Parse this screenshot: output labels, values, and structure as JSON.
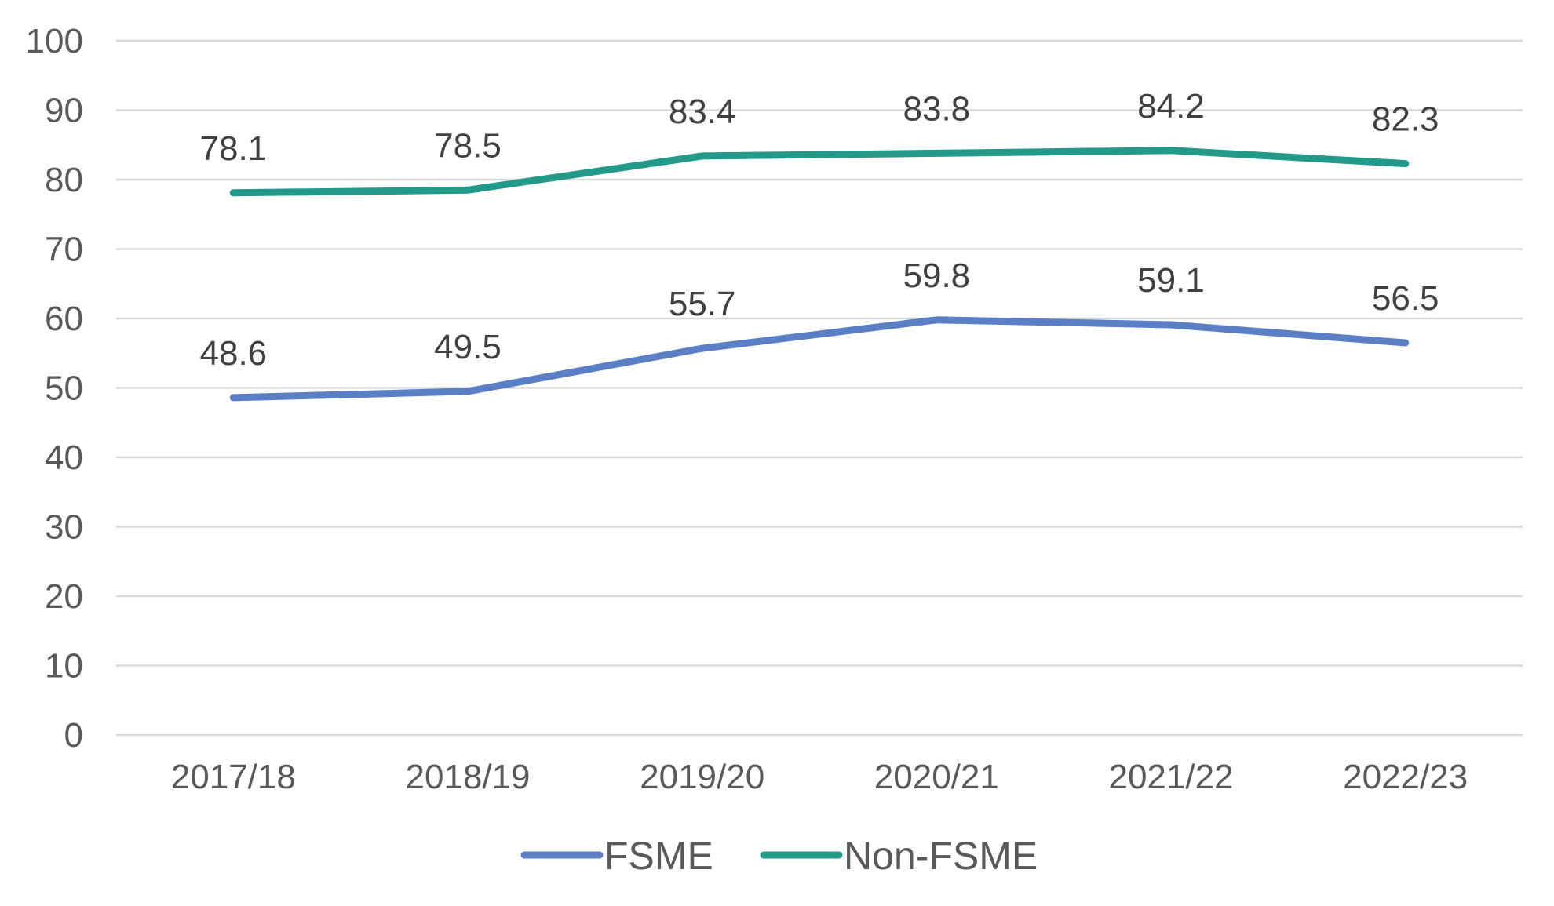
{
  "chart_data": {
    "type": "line",
    "title": "",
    "xlabel": "",
    "ylabel": "",
    "categories": [
      "2017/18",
      "2018/19",
      "2019/20",
      "2020/21",
      "2021/22",
      "2022/23"
    ],
    "ylim": [
      0,
      100
    ],
    "yticks": [
      0,
      10,
      20,
      30,
      40,
      50,
      60,
      70,
      80,
      90,
      100
    ],
    "grid": true,
    "legend_position": "bottom",
    "series": [
      {
        "name": "FSME",
        "color": "#5b7fc4",
        "values": [
          48.6,
          49.5,
          55.7,
          59.8,
          59.1,
          56.5
        ],
        "labels": [
          "48.6",
          "49.5",
          "55.7",
          "59.8",
          "59.1",
          "56.5"
        ]
      },
      {
        "name": "Non-FSME",
        "color": "#23998a",
        "values": [
          78.1,
          78.5,
          83.4,
          83.8,
          84.2,
          82.3
        ],
        "labels": [
          "78.1",
          "78.5",
          "83.4",
          "83.8",
          "84.2",
          "82.3"
        ]
      }
    ]
  }
}
